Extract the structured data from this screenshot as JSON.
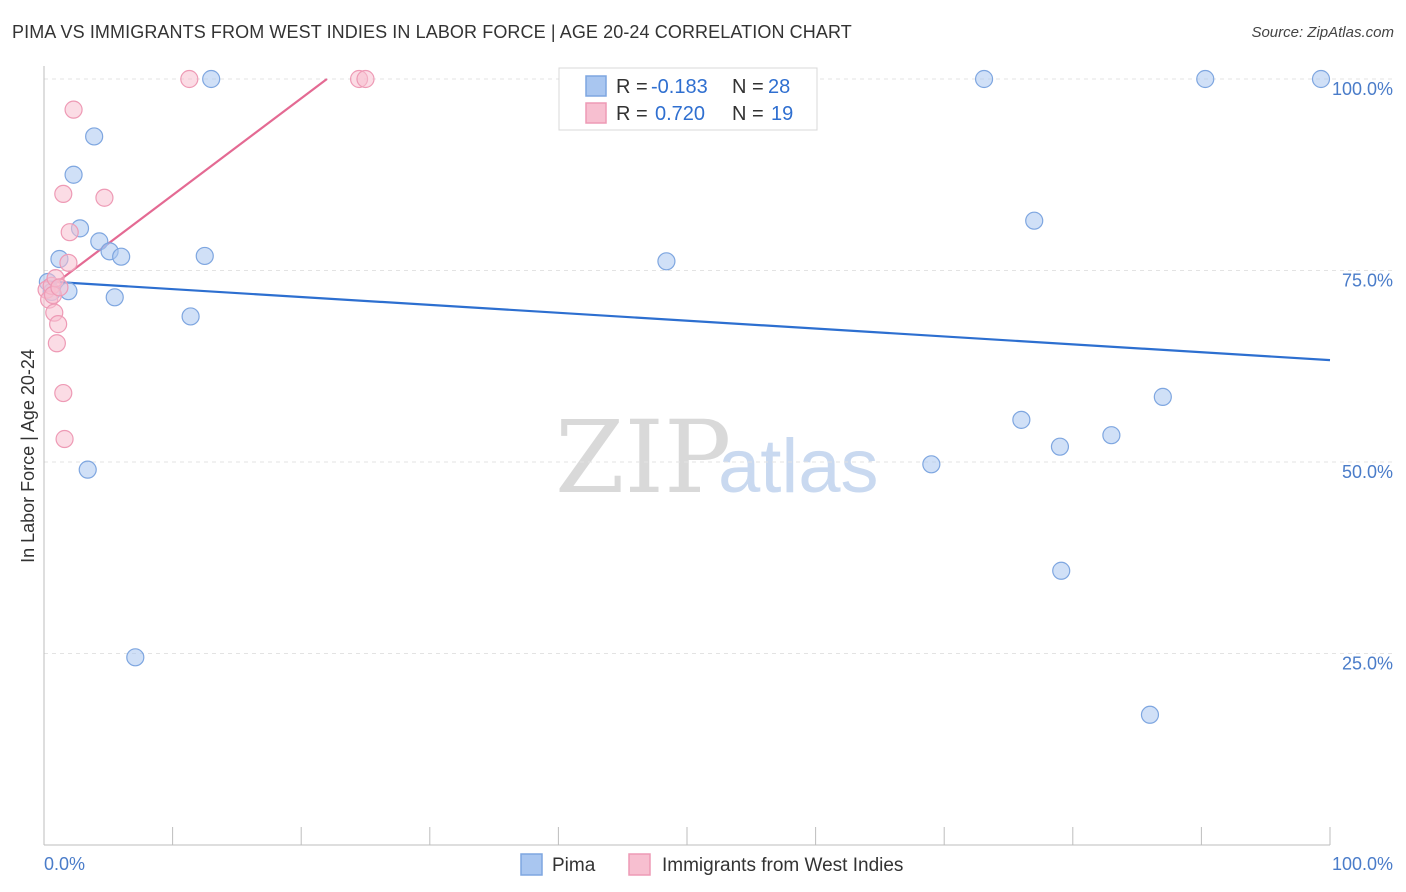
{
  "header": {
    "title": "PIMA VS IMMIGRANTS FROM WEST INDIES IN LABOR FORCE | AGE 20-24 CORRELATION CHART",
    "source": "Source: ZipAtlas.com"
  },
  "watermark": {
    "zip": "ZIP",
    "atlas": "atlas"
  },
  "chart_data": {
    "type": "scatter",
    "title": "PIMA VS IMMIGRANTS FROM WEST INDIES IN LABOR FORCE | AGE 20-24 CORRELATION CHART",
    "ylabel": "In Labor Force | Age 20-24",
    "xlabel": "",
    "xlim": [
      0,
      100
    ],
    "ylim": [
      0,
      102
    ],
    "x_tick_labels": {
      "left": "0.0%",
      "right": "100.0%"
    },
    "y_ticks": [
      {
        "value": 25,
        "label": "25.0%"
      },
      {
        "value": 50,
        "label": "50.0%"
      },
      {
        "value": 75,
        "label": "75.0%"
      },
      {
        "value": 100,
        "label": "100.0%"
      }
    ],
    "grid": true,
    "legend_position": "bottom",
    "series": [
      {
        "name": "Pima",
        "color": "#a9c6f0",
        "stroke": "#7ea6e0",
        "line_color": "#2d6fd0",
        "r_label": "R = ",
        "r_value": "-0.183",
        "n_label": "N = ",
        "n_value": "28",
        "trend": {
          "x": [
            0,
            100
          ],
          "y": [
            73.6,
            63.3
          ]
        },
        "points": [
          [
            0.3,
            73.5
          ],
          [
            0.6,
            72.2
          ],
          [
            1.2,
            76.5
          ],
          [
            1.9,
            72.3
          ],
          [
            2.3,
            87.5
          ],
          [
            2.8,
            80.5
          ],
          [
            3.4,
            49.0
          ],
          [
            3.9,
            92.5
          ],
          [
            4.3,
            78.8
          ],
          [
            5.1,
            77.5
          ],
          [
            5.5,
            71.5
          ],
          [
            6.0,
            76.8
          ],
          [
            7.1,
            24.5
          ],
          [
            11.4,
            69.0
          ],
          [
            12.5,
            76.9
          ],
          [
            13.0,
            100.0
          ],
          [
            48.4,
            76.2
          ],
          [
            69.0,
            49.7
          ],
          [
            73.1,
            100.0
          ],
          [
            76.0,
            55.5
          ],
          [
            77.0,
            81.5
          ],
          [
            79.0,
            52.0
          ],
          [
            79.1,
            35.8
          ],
          [
            83.0,
            53.5
          ],
          [
            86.0,
            17.0
          ],
          [
            87.0,
            58.5
          ],
          [
            90.3,
            100.0
          ],
          [
            99.3,
            100.0
          ]
        ]
      },
      {
        "name": "Immigrants from West Indies",
        "color": "#f7bfd0",
        "stroke": "#ee9ab5",
        "line_color": "#e46a93",
        "r_label": "R = ",
        "r_value": "0.720",
        "n_label": "N = ",
        "n_value": "19",
        "trend": {
          "x": [
            0,
            22
          ],
          "y": [
            72.2,
            100.0
          ]
        },
        "points": [
          [
            0.2,
            72.5
          ],
          [
            0.4,
            71.2
          ],
          [
            0.6,
            73.0
          ],
          [
            0.7,
            71.8
          ],
          [
            0.8,
            69.5
          ],
          [
            0.9,
            74.0
          ],
          [
            1.0,
            65.5
          ],
          [
            1.1,
            68.0
          ],
          [
            1.2,
            72.8
          ],
          [
            1.5,
            59.0
          ],
          [
            1.5,
            85.0
          ],
          [
            1.6,
            53.0
          ],
          [
            1.9,
            76.0
          ],
          [
            2.0,
            80.0
          ],
          [
            2.3,
            96.0
          ],
          [
            4.7,
            84.5
          ],
          [
            11.3,
            100.0
          ],
          [
            24.5,
            100.0
          ],
          [
            25.0,
            100.0
          ]
        ]
      }
    ]
  }
}
